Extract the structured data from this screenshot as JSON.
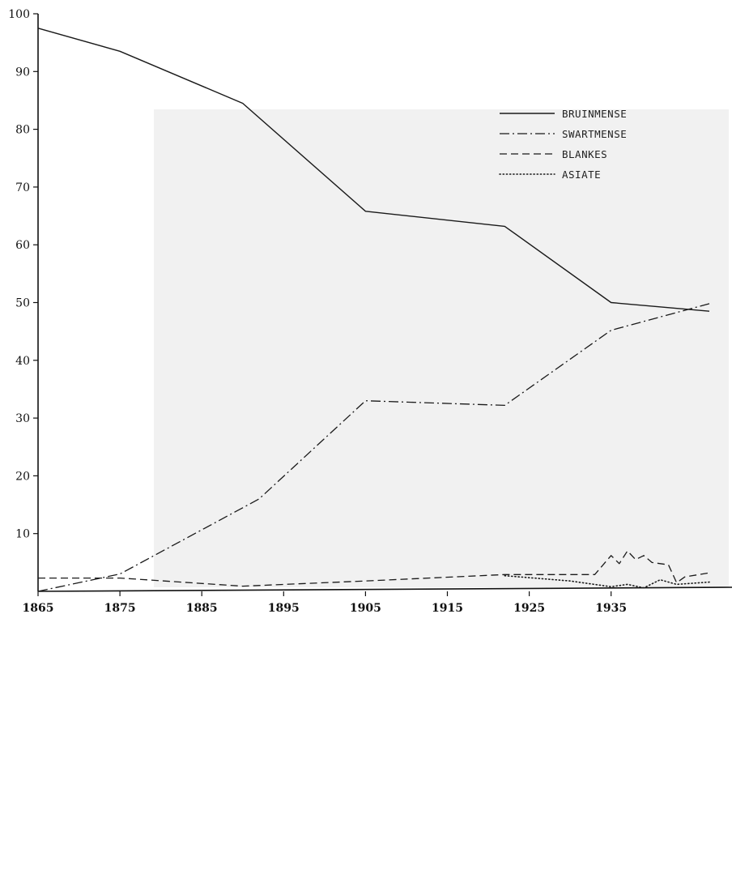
{
  "chart_data": {
    "type": "line",
    "title": "",
    "xlabel": "",
    "ylabel": "",
    "xlim": [
      1865,
      1947
    ],
    "ylim": [
      0,
      100
    ],
    "x_ticks": [
      1865,
      1875,
      1885,
      1895,
      1905,
      1915,
      1925,
      1935
    ],
    "y_ticks": [
      10,
      20,
      30,
      40,
      50,
      60,
      70,
      80,
      90,
      100
    ],
    "y_tick_labels": [
      "10",
      "20",
      "30",
      "40",
      "50",
      "60",
      "70",
      "80",
      "90",
      "100"
    ],
    "x_tick_labels": [
      "1865",
      "1875",
      "1885",
      "1895",
      "1905",
      "1915",
      "1925",
      "1935"
    ],
    "grid": false,
    "legend_position": "top-right",
    "series": [
      {
        "name": "BRUINMENSE",
        "dash": "solid",
        "x": [
          1865,
          1875,
          1890,
          1905,
          1922,
          1935,
          1947
        ],
        "y": [
          97.5,
          93.5,
          84.5,
          65.8,
          63.2,
          50.0,
          48.5
        ]
      },
      {
        "name": "SWARTMENSE",
        "dash": "dashdot",
        "x": [
          1865,
          1875,
          1892,
          1905,
          1922,
          1935,
          1947
        ],
        "y": [
          0.0,
          3.0,
          16.0,
          33.0,
          32.2,
          45.2,
          49.8
        ]
      },
      {
        "name": "BLANKES",
        "dash": "dashed",
        "x": [
          1865,
          1875,
          1890,
          1905,
          1922,
          1933,
          1935,
          1936,
          1937,
          1938,
          1939,
          1940,
          1942,
          1943,
          1944,
          1947
        ],
        "y": [
          2.3,
          2.3,
          0.9,
          1.8,
          2.9,
          2.9,
          6.2,
          4.8,
          7.0,
          5.5,
          6.2,
          5.0,
          4.6,
          1.5,
          2.5,
          3.2
        ]
      },
      {
        "name": "ASIATE",
        "dash": "dotted",
        "x": [
          1922,
          1930,
          1935,
          1937,
          1939,
          1941,
          1943,
          1947
        ],
        "y": [
          2.7,
          1.8,
          0.8,
          1.2,
          0.6,
          2.0,
          1.2,
          1.6
        ]
      }
    ]
  }
}
